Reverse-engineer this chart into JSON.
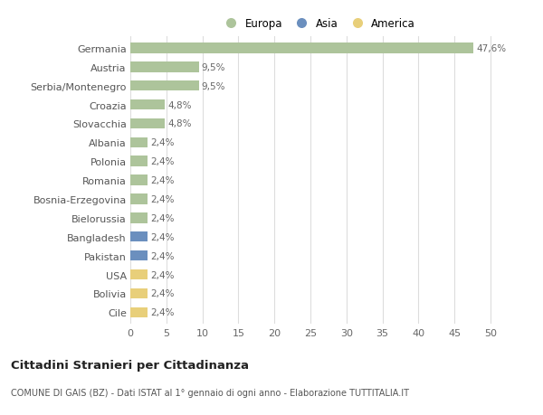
{
  "categories": [
    "Germania",
    "Austria",
    "Serbia/Montenegro",
    "Croazia",
    "Slovacchia",
    "Albania",
    "Polonia",
    "Romania",
    "Bosnia-Erzegovina",
    "Bielorussia",
    "Bangladesh",
    "Pakistan",
    "USA",
    "Bolivia",
    "Cile"
  ],
  "values": [
    47.6,
    9.5,
    9.5,
    4.8,
    4.8,
    2.4,
    2.4,
    2.4,
    2.4,
    2.4,
    2.4,
    2.4,
    2.4,
    2.4,
    2.4
  ],
  "labels": [
    "47,6%",
    "9,5%",
    "9,5%",
    "4,8%",
    "4,8%",
    "2,4%",
    "2,4%",
    "2,4%",
    "2,4%",
    "2,4%",
    "2,4%",
    "2,4%",
    "2,4%",
    "2,4%",
    "2,4%"
  ],
  "continents": [
    "Europa",
    "Europa",
    "Europa",
    "Europa",
    "Europa",
    "Europa",
    "Europa",
    "Europa",
    "Europa",
    "Europa",
    "Asia",
    "Asia",
    "America",
    "America",
    "America"
  ],
  "colors": {
    "Europa": "#adc49b",
    "Asia": "#6b8fbe",
    "America": "#e8cf7a"
  },
  "legend_items": [
    "Europa",
    "Asia",
    "America"
  ],
  "legend_colors": [
    "#adc49b",
    "#6b8fbe",
    "#e8cf7a"
  ],
  "title": "Cittadini Stranieri per Cittadinanza",
  "subtitle": "COMUNE DI GAIS (BZ) - Dati ISTAT al 1° gennaio di ogni anno - Elaborazione TUTTITALIA.IT",
  "xlim": [
    0,
    52
  ],
  "xticks": [
    0,
    5,
    10,
    15,
    20,
    25,
    30,
    35,
    40,
    45,
    50
  ],
  "bar_height": 0.55,
  "background_color": "#ffffff",
  "grid_color": "#dddddd",
  "label_fontsize": 7.5,
  "ytick_fontsize": 8,
  "xtick_fontsize": 8,
  "title_fontsize": 9.5,
  "subtitle_fontsize": 7
}
